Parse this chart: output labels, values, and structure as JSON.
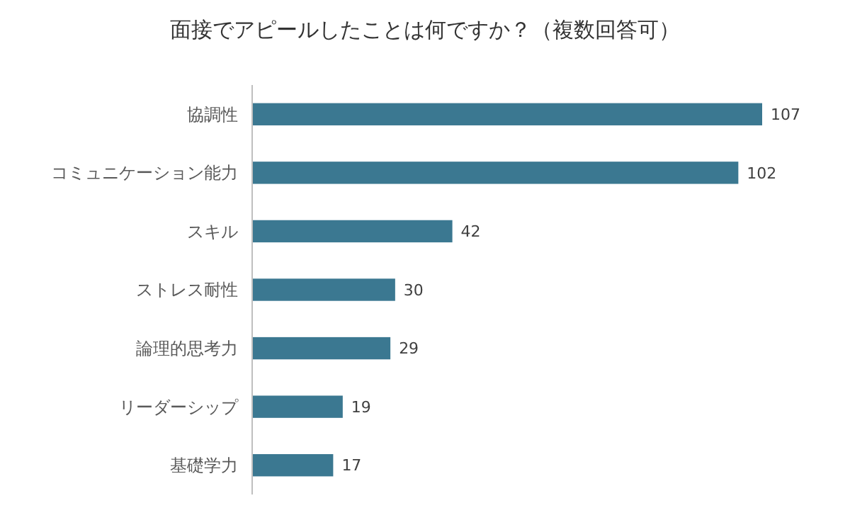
{
  "chart_data": {
    "type": "bar",
    "orientation": "horizontal",
    "title": "面接でアピールしたことは何ですか？（複数回答可）",
    "categories": [
      "協調性",
      "コミュニケーション能力",
      "スキル",
      "ストレス耐性",
      "論理的思考力",
      "リーダーシップ",
      "基礎学力"
    ],
    "values": [
      107,
      102,
      42,
      30,
      29,
      19,
      17
    ],
    "color": "#3b7891",
    "data_labels": true
  }
}
